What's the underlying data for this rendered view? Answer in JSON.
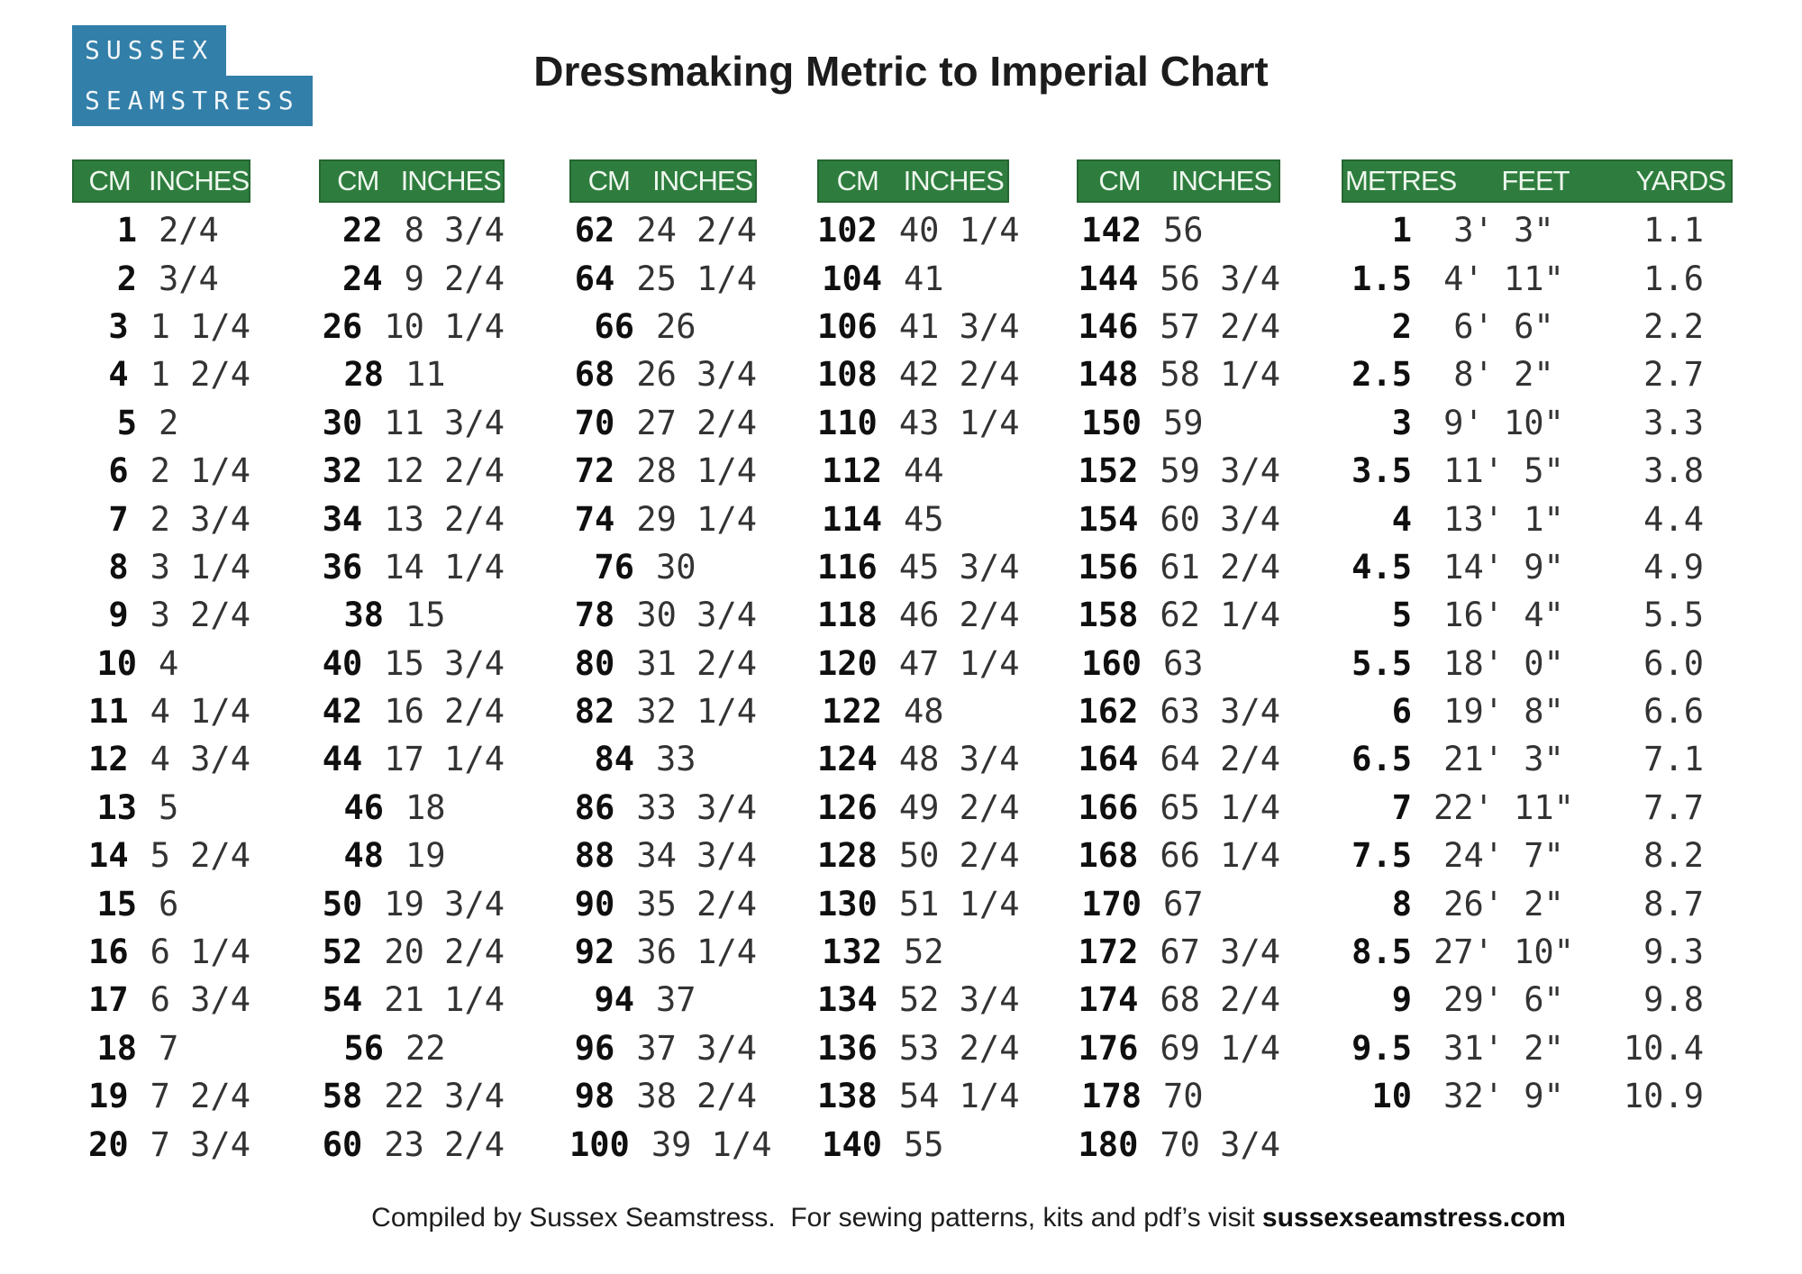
{
  "logo": {
    "line1": "SUSSEX",
    "line2": "SEAMSTRESS"
  },
  "title": "Dressmaking Metric to Imperial Chart",
  "colors": {
    "header_green": "#2e7d3e",
    "logo_blue": "#327fa9",
    "header_text": "#eef7ee"
  },
  "cm_tables": [
    {
      "headers": [
        "CM",
        "INCHES"
      ],
      "rows": [
        [
          "1",
          "2/4"
        ],
        [
          "2",
          "3/4"
        ],
        [
          "3",
          "1 1/4"
        ],
        [
          "4",
          "1 2/4"
        ],
        [
          "5",
          "2"
        ],
        [
          "6",
          "2 1/4"
        ],
        [
          "7",
          "2 3/4"
        ],
        [
          "8",
          "3 1/4"
        ],
        [
          "9",
          "3 2/4"
        ],
        [
          "10",
          "4"
        ],
        [
          "11",
          "4 1/4"
        ],
        [
          "12",
          "4 3/4"
        ],
        [
          "13",
          "5"
        ],
        [
          "14",
          "5 2/4"
        ],
        [
          "15",
          "6"
        ],
        [
          "16",
          "6 1/4"
        ],
        [
          "17",
          "6 3/4"
        ],
        [
          "18",
          "7"
        ],
        [
          "19",
          "7 2/4"
        ],
        [
          "20",
          "7 3/4"
        ]
      ]
    },
    {
      "headers": [
        "CM",
        "INCHES"
      ],
      "rows": [
        [
          "22",
          "8 3/4"
        ],
        [
          "24",
          "9 2/4"
        ],
        [
          "26",
          "10 1/4"
        ],
        [
          "28",
          "11"
        ],
        [
          "30",
          "11 3/4"
        ],
        [
          "32",
          "12 2/4"
        ],
        [
          "34",
          "13 2/4"
        ],
        [
          "36",
          "14 1/4"
        ],
        [
          "38",
          "15"
        ],
        [
          "40",
          "15 3/4"
        ],
        [
          "42",
          "16 2/4"
        ],
        [
          "44",
          "17 1/4"
        ],
        [
          "46",
          "18"
        ],
        [
          "48",
          "19"
        ],
        [
          "50",
          "19 3/4"
        ],
        [
          "52",
          "20 2/4"
        ],
        [
          "54",
          "21 1/4"
        ],
        [
          "56",
          "22"
        ],
        [
          "58",
          "22 3/4"
        ],
        [
          "60",
          "23 2/4"
        ]
      ]
    },
    {
      "headers": [
        "CM",
        "INCHES"
      ],
      "rows": [
        [
          "62",
          "24 2/4"
        ],
        [
          "64",
          "25 1/4"
        ],
        [
          "66",
          "26"
        ],
        [
          "68",
          "26 3/4"
        ],
        [
          "70",
          "27 2/4"
        ],
        [
          "72",
          "28 1/4"
        ],
        [
          "74",
          "29 1/4"
        ],
        [
          "76",
          "30"
        ],
        [
          "78",
          "30 3/4"
        ],
        [
          "80",
          "31 2/4"
        ],
        [
          "82",
          "32 1/4"
        ],
        [
          "84",
          "33"
        ],
        [
          "86",
          "33 3/4"
        ],
        [
          "88",
          "34 3/4"
        ],
        [
          "90",
          "35 2/4"
        ],
        [
          "92",
          "36 1/4"
        ],
        [
          "94",
          "37"
        ],
        [
          "96",
          "37 3/4"
        ],
        [
          "98",
          "38 2/4"
        ],
        [
          "100",
          "39 1/4"
        ]
      ]
    },
    {
      "headers": [
        "CM",
        "INCHES"
      ],
      "rows": [
        [
          "102",
          "40 1/4"
        ],
        [
          "104",
          "41"
        ],
        [
          "106",
          "41 3/4"
        ],
        [
          "108",
          "42 2/4"
        ],
        [
          "110",
          "43 1/4"
        ],
        [
          "112",
          "44"
        ],
        [
          "114",
          "45"
        ],
        [
          "116",
          "45 3/4"
        ],
        [
          "118",
          "46 2/4"
        ],
        [
          "120",
          "47 1/4"
        ],
        [
          "122",
          "48"
        ],
        [
          "124",
          "48 3/4"
        ],
        [
          "126",
          "49 2/4"
        ],
        [
          "128",
          "50 2/4"
        ],
        [
          "130",
          "51 1/4"
        ],
        [
          "132",
          "52"
        ],
        [
          "134",
          "52 3/4"
        ],
        [
          "136",
          "53 2/4"
        ],
        [
          "138",
          "54 1/4"
        ],
        [
          "140",
          "55"
        ]
      ]
    },
    {
      "headers": [
        "CM",
        "INCHES"
      ],
      "rows": [
        [
          "142",
          "56"
        ],
        [
          "144",
          "56 3/4"
        ],
        [
          "146",
          "57 2/4"
        ],
        [
          "148",
          "58 1/4"
        ],
        [
          "150",
          "59"
        ],
        [
          "152",
          "59 3/4"
        ],
        [
          "154",
          "60 3/4"
        ],
        [
          "156",
          "61 2/4"
        ],
        [
          "158",
          "62 1/4"
        ],
        [
          "160",
          "63"
        ],
        [
          "162",
          "63 3/4"
        ],
        [
          "164",
          "64 2/4"
        ],
        [
          "166",
          "65 1/4"
        ],
        [
          "168",
          "66 1/4"
        ],
        [
          "170",
          "67"
        ],
        [
          "172",
          "67 3/4"
        ],
        [
          "174",
          "68 2/4"
        ],
        [
          "176",
          "69 1/4"
        ],
        [
          "178",
          "70"
        ],
        [
          "180",
          "70 3/4"
        ]
      ]
    }
  ],
  "metres_table": {
    "headers": [
      "METRES",
      "FEET",
      "YARDS"
    ],
    "rows": [
      [
        "1",
        "3' 3\"",
        "1.1"
      ],
      [
        "1.5",
        "4' 11\"",
        "1.6"
      ],
      [
        "2",
        "6' 6\"",
        "2.2"
      ],
      [
        "2.5",
        "8' 2\"",
        "2.7"
      ],
      [
        "3",
        "9' 10\"",
        "3.3"
      ],
      [
        "3.5",
        "11' 5\"",
        "3.8"
      ],
      [
        "4",
        "13' 1\"",
        "4.4"
      ],
      [
        "4.5",
        "14' 9\"",
        "4.9"
      ],
      [
        "5",
        "16' 4\"",
        "5.5"
      ],
      [
        "5.5",
        "18' 0\"",
        "6.0"
      ],
      [
        "6",
        "19' 8\"",
        "6.6"
      ],
      [
        "6.5",
        "21' 3\"",
        "7.1"
      ],
      [
        "7",
        "22' 11\"",
        "7.7"
      ],
      [
        "7.5",
        "24' 7\"",
        "8.2"
      ],
      [
        "8",
        "26' 2\"",
        "8.7"
      ],
      [
        "8.5",
        "27' 10\"",
        "9.3"
      ],
      [
        "9",
        "29' 6\"",
        "9.8"
      ],
      [
        "9.5",
        "31' 2\"",
        "10.4"
      ],
      [
        "10",
        "32' 9\"",
        "10.9"
      ]
    ]
  },
  "footer": {
    "text": "Compiled by Sussex Seamstress.  For sewing patterns, kits and pdf’s visit ",
    "link": "sussexseamstress.com"
  }
}
